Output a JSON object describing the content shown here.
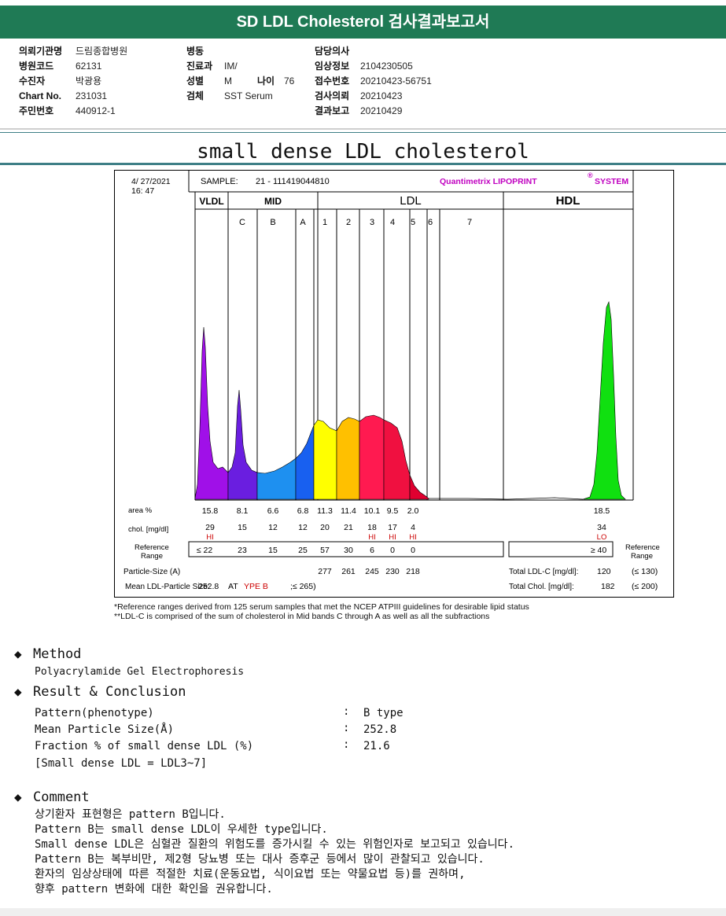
{
  "title": "SD LDL Cholesterol 검사결과보고서",
  "patient": {
    "col1": [
      {
        "label": "의뢰기관명",
        "value": "드림종합병원"
      },
      {
        "label": "병원코드",
        "value": "62131"
      },
      {
        "label": "수진자",
        "value": "박광용"
      },
      {
        "label": "Chart No.",
        "value": "231031"
      },
      {
        "label": "주민번호",
        "value": "440912-1"
      }
    ],
    "col2": [
      {
        "label": "병동",
        "value": ""
      },
      {
        "label": "진료과",
        "value": "IM/"
      },
      {
        "label": "성별",
        "value": "M"
      },
      {
        "label": "검체",
        "value": "SST Serum"
      }
    ],
    "age_label": "나이",
    "age_value": "76",
    "col3": [
      {
        "label": "담당의사",
        "value": ""
      },
      {
        "label": "임상정보",
        "value": "2104230505"
      },
      {
        "label": "접수번호",
        "value": "20210423-56751"
      },
      {
        "label": "검사의뢰",
        "value": "20210423"
      },
      {
        "label": "결과보고",
        "value": "20210429"
      }
    ]
  },
  "subtitle": "small dense LDL cholesterol",
  "report": {
    "date": "4/ 27/2021",
    "time": "16: 47",
    "sample_label": "SAMPLE:",
    "sample_id": "21 - 111419044810",
    "brand": "Quantimetrix LIPOPRINT",
    "brand_mark": "®",
    "brand_suffix": "SYSTEM",
    "group_labels": {
      "vldl": "VLDL",
      "mid": "MID",
      "ldl": "LDL",
      "hdl": "HDL"
    },
    "band_labels": [
      "C",
      "B",
      "A",
      "1",
      "2",
      "3",
      "4",
      "5",
      "6",
      "7"
    ],
    "row_labels": {
      "area": "area %",
      "chol": "chol. [mg/dl]",
      "ref1": "Reference",
      "ref2": "Range",
      "particle": "Particle-Size (A)",
      "mean": "Mean LDL-Particle Size:",
      "ref_right1": "Reference",
      "ref_right2": "Range"
    },
    "area_values": [
      "15.8",
      "8.1",
      "6.6",
      "6.8",
      "11.3",
      "11.4",
      "10.1",
      "9.5",
      "2.0",
      "18.5"
    ],
    "chol_values": [
      "29",
      "15",
      "12",
      "12",
      "20",
      "21",
      "18",
      "17",
      "4",
      "34"
    ],
    "flags": [
      "HI",
      "",
      "",
      "",
      "",
      "",
      "HI",
      "HI",
      "HI",
      "LO"
    ],
    "ref_values": [
      "≤ 22",
      "23",
      "15",
      "25",
      "57",
      "30",
      "6",
      "0",
      "0"
    ],
    "hdl_ref": "≥ 40",
    "particle_sizes": [
      "277",
      "261",
      "245",
      "230",
      "218"
    ],
    "mean_value": "252.8",
    "mean_type_pre": "AT",
    "mean_type": "YPE B",
    "mean_range": ";≤ 265)",
    "total_ldl_label": "Total LDL-C [mg/dl]:",
    "total_ldl_value": "120",
    "total_ldl_range": "(≤ 130)",
    "total_chol_label": "Total Chol. [mg/dl]:",
    "total_chol_value": "182",
    "total_chol_range": "(≤ 200)"
  },
  "footnotes": [
    "*Reference ranges derived from 125 serum samples that met the NCEP ATPIII guidelines for desirable lipid status",
    "**LDL-C is comprised of the sum of cholesterol in Mid bands C through A as well as all the subfractions"
  ],
  "method": {
    "heading": "Method",
    "text": "Polyacrylamide Gel Electrophoresis"
  },
  "result": {
    "heading": "Result & Conclusion",
    "rows": [
      {
        "label": "Pattern(phenotype)",
        "sep": ":",
        "value": "B type"
      },
      {
        "label": "Mean Particle Size(Å)",
        "sep": ":",
        "value": "252.8"
      },
      {
        "label": "Fraction % of small dense LDL (%)",
        "sep": ":",
        "value": "21.6"
      }
    ],
    "note": "[Small dense LDL = LDL3~7]"
  },
  "comment": {
    "heading": "Comment",
    "lines": [
      "상기환자 표현형은 pattern B입니다.",
      "Pattern B는 small dense LDL이 우세한 type입니다.",
      "Small dense LDL은 심혈관 질환의 위험도를 증가시킬 수 있는 위험인자로 보고되고 있습니다.",
      "Pattern B는 복부비만, 제2형 당뇨병 또는 대사 증후군 등에서 많이 관찰되고 있습니다.",
      "환자의 임상상태에 따른 적절한 치료(운동요법, 식이요법 또는 약물요법 등)를 권하며,",
      "향후 pattern 변화에 대한 확인을 권유합니다."
    ]
  },
  "colors": {
    "title_bar": "#1f7a55",
    "vldl": "#a010e8",
    "mid_c": "#6a1ee0",
    "mid_b": "#1e90f0",
    "mid_a": "#1860f0",
    "ldl1": "#ffff00",
    "ldl2": "#ffc000",
    "ldl3": "#ff1a50",
    "ldl4": "#f01040",
    "ldl5": "#e00030",
    "hdl": "#10e010",
    "brand": "#c000c0",
    "flag": "#cc0000"
  }
}
